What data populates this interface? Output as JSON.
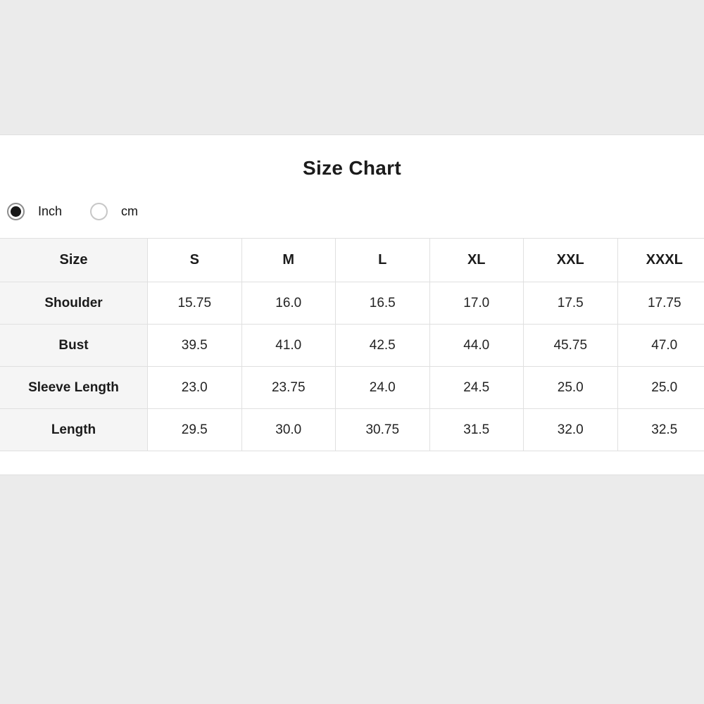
{
  "page": {
    "title": "Size Chart"
  },
  "unit_toggle": {
    "options": [
      {
        "label": "Inch",
        "selected": true
      },
      {
        "label": "cm",
        "selected": false
      }
    ]
  },
  "size_table": {
    "header": [
      "Size",
      "S",
      "M",
      "L",
      "XL",
      "XXL",
      "XXXL"
    ],
    "rows": [
      {
        "label": "Shoulder",
        "values": [
          "15.75",
          "16.0",
          "16.5",
          "17.0",
          "17.5",
          "17.75"
        ]
      },
      {
        "label": "Bust",
        "values": [
          "39.5",
          "41.0",
          "42.5",
          "44.0",
          "45.75",
          "47.0"
        ]
      },
      {
        "label": "Sleeve Length",
        "values": [
          "23.0",
          "23.75",
          "24.0",
          "24.5",
          "25.0",
          "25.0"
        ]
      },
      {
        "label": "Length",
        "values": [
          "29.5",
          "30.0",
          "30.75",
          "31.5",
          "32.0",
          "32.5"
        ]
      }
    ]
  },
  "colors": {
    "page_background": "#ebebeb",
    "panel_background": "#ffffff",
    "table_border": "#e0e0e0",
    "label_column_background": "#f5f5f5",
    "radio_selected_dot": "#161616",
    "text_primary": "#1b1b1b"
  }
}
